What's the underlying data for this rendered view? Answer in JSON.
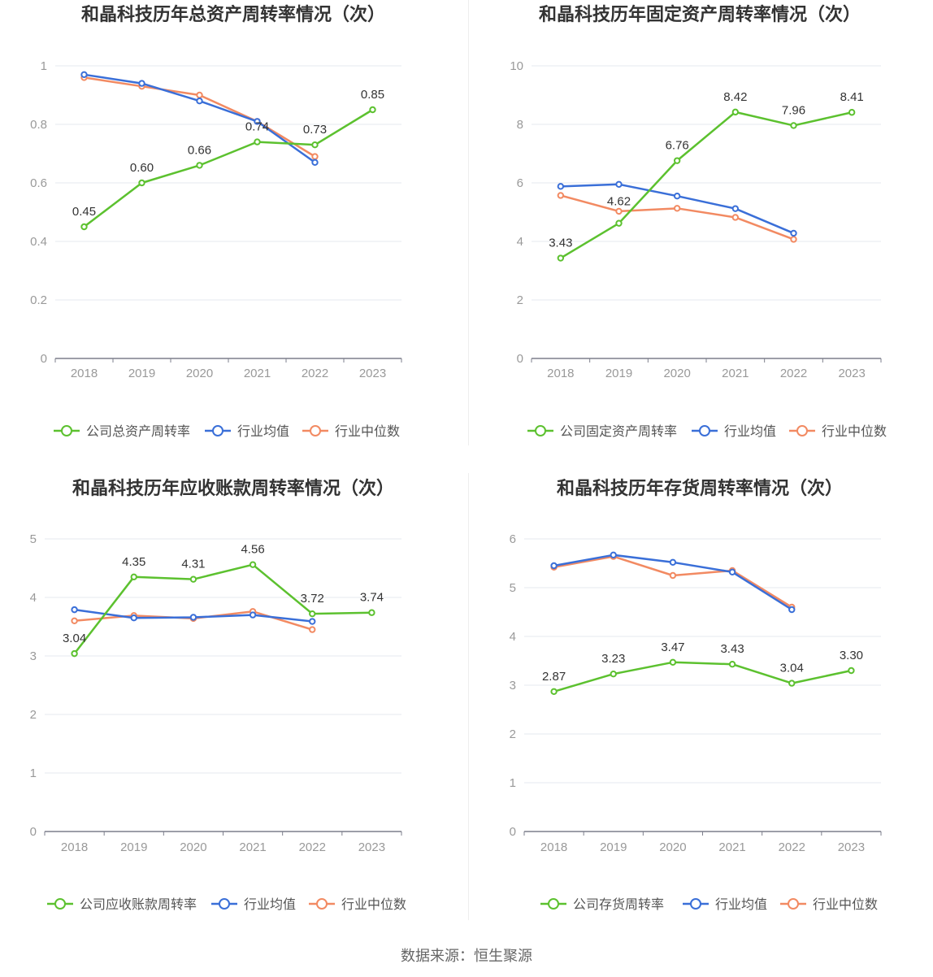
{
  "source": "数据来源：恒生聚源",
  "colors": {
    "company": "#5cc12f",
    "avg": "#3a6fd8",
    "median": "#f28a62"
  },
  "chart_data": [
    {
      "type": "line",
      "title": "和晶科技历年总资产周转率情况（次）",
      "categories": [
        "2018",
        "2019",
        "2020",
        "2021",
        "2022",
        "2023"
      ],
      "ylim": [
        0,
        1
      ],
      "yticks": [
        0,
        0.2,
        0.4,
        0.6,
        0.8,
        1
      ],
      "ytick_labels": [
        "0",
        "0.2",
        "0.4",
        "0.6",
        "0.8",
        "1"
      ],
      "series": [
        {
          "name": "公司总资产周转率",
          "values": [
            0.45,
            0.6,
            0.66,
            0.74,
            0.73,
            0.85
          ],
          "labels": [
            "0.45",
            "0.60",
            "0.66",
            "0.74",
            "0.73",
            "0.85"
          ]
        },
        {
          "name": "行业均值",
          "values": [
            0.97,
            0.94,
            0.88,
            0.81,
            0.67,
            null
          ]
        },
        {
          "name": "行业中位数",
          "values": [
            0.96,
            0.93,
            0.9,
            0.81,
            0.69,
            null
          ]
        }
      ]
    },
    {
      "type": "line",
      "title": "和晶科技历年固定资产周转率情况（次）",
      "categories": [
        "2018",
        "2019",
        "2020",
        "2021",
        "2022",
        "2023"
      ],
      "ylim": [
        0,
        10
      ],
      "yticks": [
        0,
        2,
        4,
        6,
        8,
        10
      ],
      "ytick_labels": [
        "0",
        "2",
        "4",
        "6",
        "8",
        "10"
      ],
      "series": [
        {
          "name": "公司固定资产周转率",
          "values": [
            3.43,
            4.62,
            6.76,
            8.42,
            7.96,
            8.41
          ],
          "labels": [
            "3.43",
            "4.62",
            "6.76",
            "8.42",
            "7.96",
            "8.41"
          ]
        },
        {
          "name": "行业均值",
          "values": [
            5.88,
            5.95,
            5.55,
            5.12,
            4.28,
            null
          ]
        },
        {
          "name": "行业中位数",
          "values": [
            5.57,
            5.03,
            5.13,
            4.82,
            4.07,
            null
          ]
        }
      ]
    },
    {
      "type": "line",
      "title": "和晶科技历年应收账款周转率情况（次）",
      "categories": [
        "2018",
        "2019",
        "2020",
        "2021",
        "2022",
        "2023"
      ],
      "ylim": [
        0,
        5
      ],
      "yticks": [
        0,
        1,
        2,
        3,
        4,
        5
      ],
      "ytick_labels": [
        "0",
        "1",
        "2",
        "3",
        "4",
        "5"
      ],
      "series": [
        {
          "name": "公司应收账款周转率",
          "values": [
            3.04,
            4.35,
            4.31,
            4.56,
            3.72,
            3.74
          ],
          "labels": [
            "3.04",
            "4.35",
            "4.31",
            "4.56",
            "3.72",
            "3.74"
          ]
        },
        {
          "name": "行业均值",
          "values": [
            3.79,
            3.65,
            3.66,
            3.7,
            3.59,
            null
          ]
        },
        {
          "name": "行业中位数",
          "values": [
            3.6,
            3.69,
            3.64,
            3.76,
            3.45,
            null
          ]
        }
      ]
    },
    {
      "type": "line",
      "title": "和晶科技历年存货周转率情况（次）",
      "categories": [
        "2018",
        "2019",
        "2020",
        "2021",
        "2022",
        "2023"
      ],
      "ylim": [
        0,
        6
      ],
      "yticks": [
        0,
        1,
        2,
        3,
        4,
        5,
        6
      ],
      "ytick_labels": [
        "0",
        "1",
        "2",
        "3",
        "4",
        "5",
        "6"
      ],
      "series": [
        {
          "name": "公司存货周转率",
          "values": [
            2.87,
            3.23,
            3.47,
            3.43,
            3.04,
            3.3
          ],
          "labels": [
            "2.87",
            "3.23",
            "3.47",
            "3.43",
            "3.04",
            "3.30"
          ]
        },
        {
          "name": "行业均值",
          "values": [
            5.45,
            5.67,
            5.52,
            5.32,
            4.55,
            null
          ]
        },
        {
          "name": "行业中位数",
          "values": [
            5.42,
            5.64,
            5.25,
            5.35,
            4.6,
            null
          ]
        }
      ]
    }
  ]
}
